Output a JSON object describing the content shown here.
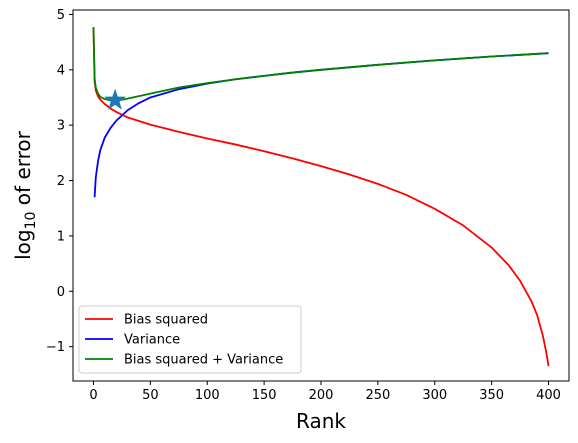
{
  "chart_data": {
    "type": "line",
    "xlabel": "Rank",
    "ylabel_base": "log",
    "ylabel_sub": "10",
    "ylabel_rest": " of error",
    "xlim": [
      -18,
      418
    ],
    "ylim": [
      -1.62,
      5.08
    ],
    "xticks": [
      0,
      50,
      100,
      150,
      200,
      250,
      300,
      350,
      400
    ],
    "yticks": [
      -1,
      0,
      1,
      2,
      3,
      4,
      5
    ],
    "ytick_labels": [
      "−1",
      "0",
      "1",
      "2",
      "3",
      "4",
      "5"
    ],
    "grid": false,
    "legend_position": "lower-left",
    "series": [
      {
        "name": "Bias squared",
        "color": "#ff0000",
        "points": [
          [
            0,
            4.77
          ],
          [
            1,
            3.8
          ],
          [
            2,
            3.63
          ],
          [
            4,
            3.52
          ],
          [
            6,
            3.46
          ],
          [
            10,
            3.38
          ],
          [
            15,
            3.3
          ],
          [
            20,
            3.24
          ],
          [
            30,
            3.14
          ],
          [
            50,
            3.01
          ],
          [
            75,
            2.88
          ],
          [
            100,
            2.76
          ],
          [
            125,
            2.65
          ],
          [
            150,
            2.53
          ],
          [
            175,
            2.4
          ],
          [
            200,
            2.26
          ],
          [
            225,
            2.11
          ],
          [
            250,
            1.94
          ],
          [
            275,
            1.74
          ],
          [
            300,
            1.49
          ],
          [
            325,
            1.19
          ],
          [
            350,
            0.79
          ],
          [
            365,
            0.47
          ],
          [
            375,
            0.19
          ],
          [
            385,
            -0.18
          ],
          [
            390,
            -0.43
          ],
          [
            395,
            -0.8
          ],
          [
            398,
            -1.1
          ],
          [
            400,
            -1.35
          ]
        ]
      },
      {
        "name": "Variance",
        "color": "#0000ff",
        "points": [
          [
            1,
            1.7
          ],
          [
            2,
            2.05
          ],
          [
            4,
            2.35
          ],
          [
            6,
            2.55
          ],
          [
            10,
            2.78
          ],
          [
            15,
            2.95
          ],
          [
            20,
            3.08
          ],
          [
            30,
            3.27
          ],
          [
            40,
            3.4
          ],
          [
            50,
            3.5
          ],
          [
            75,
            3.65
          ],
          [
            100,
            3.75
          ],
          [
            125,
            3.83
          ],
          [
            150,
            3.89
          ],
          [
            175,
            3.95
          ],
          [
            200,
            4.0
          ],
          [
            250,
            4.09
          ],
          [
            300,
            4.17
          ],
          [
            350,
            4.24
          ],
          [
            400,
            4.3
          ]
        ]
      },
      {
        "name": "Bias squared + Variance",
        "color": "#008000",
        "points": [
          [
            0,
            4.77
          ],
          [
            1,
            3.85
          ],
          [
            2,
            3.68
          ],
          [
            4,
            3.57
          ],
          [
            6,
            3.51
          ],
          [
            10,
            3.47
          ],
          [
            15,
            3.45
          ],
          [
            20,
            3.45
          ],
          [
            25,
            3.46
          ],
          [
            30,
            3.48
          ],
          [
            50,
            3.57
          ],
          [
            75,
            3.68
          ],
          [
            100,
            3.76
          ],
          [
            125,
            3.83
          ],
          [
            150,
            3.89
          ],
          [
            175,
            3.95
          ],
          [
            200,
            4.0
          ],
          [
            250,
            4.09
          ],
          [
            300,
            4.17
          ],
          [
            350,
            4.24
          ],
          [
            400,
            4.3
          ]
        ]
      }
    ],
    "marker": {
      "shape": "star",
      "x": 19,
      "y": 3.45,
      "color": "#1f77b4"
    }
  }
}
